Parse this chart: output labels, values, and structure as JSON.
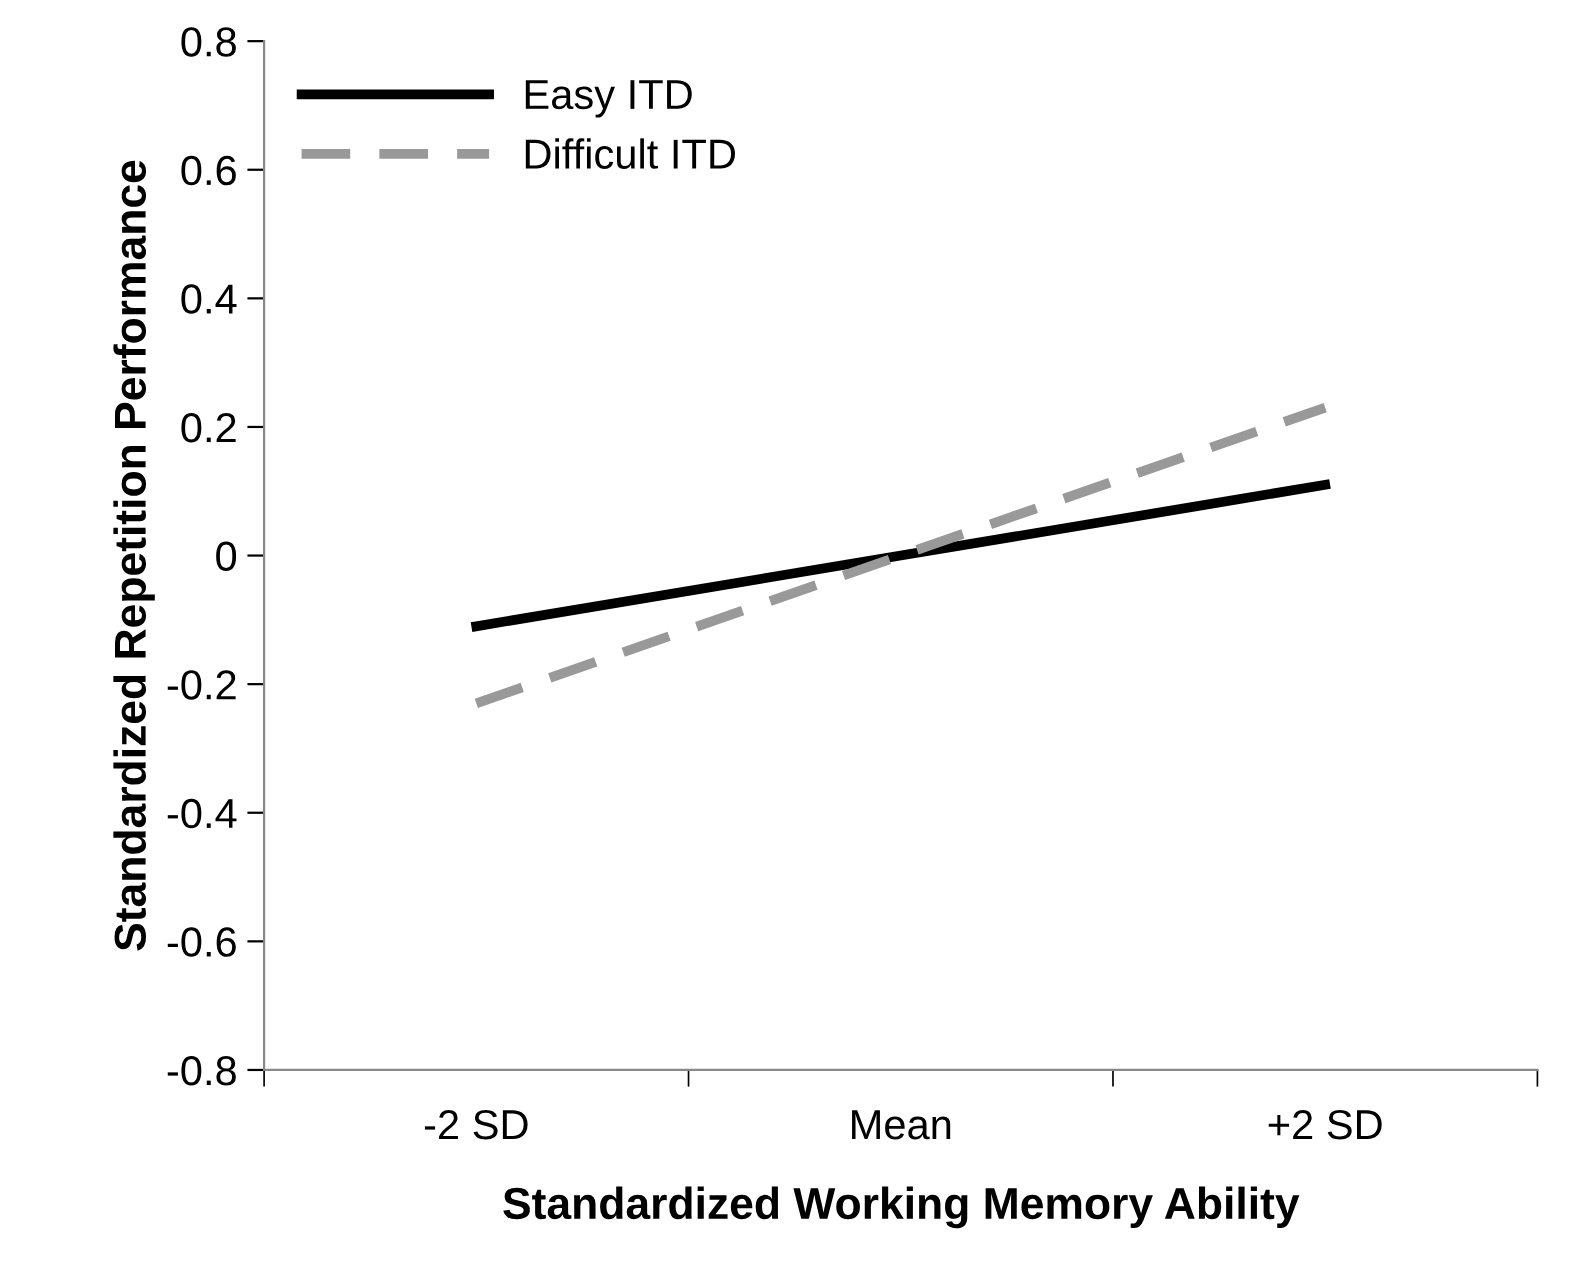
{
  "chart_data": {
    "type": "line",
    "xlabel": "Standardized Working Memory Ability",
    "ylabel": "Standardized Repetition Performance",
    "categories": [
      "-2 SD",
      "Mean",
      "+2 SD"
    ],
    "series": [
      {
        "name": "Easy ITD",
        "color": "#000000",
        "values": [
          -0.11,
          0,
          0.11
        ],
        "line_style": "solid"
      },
      {
        "name": "Difficult ITD",
        "color": "#999999",
        "values": [
          -0.23,
          0,
          0.23
        ],
        "line_style": "dashed"
      }
    ],
    "ylim": [
      -0.8,
      0.8
    ],
    "yticks": [
      -0.8,
      -0.6,
      -0.4,
      -0.2,
      0,
      0.2,
      0.4,
      0.6,
      0.8
    ],
    "grid": false,
    "legend": "top left",
    "marker": "none"
  }
}
